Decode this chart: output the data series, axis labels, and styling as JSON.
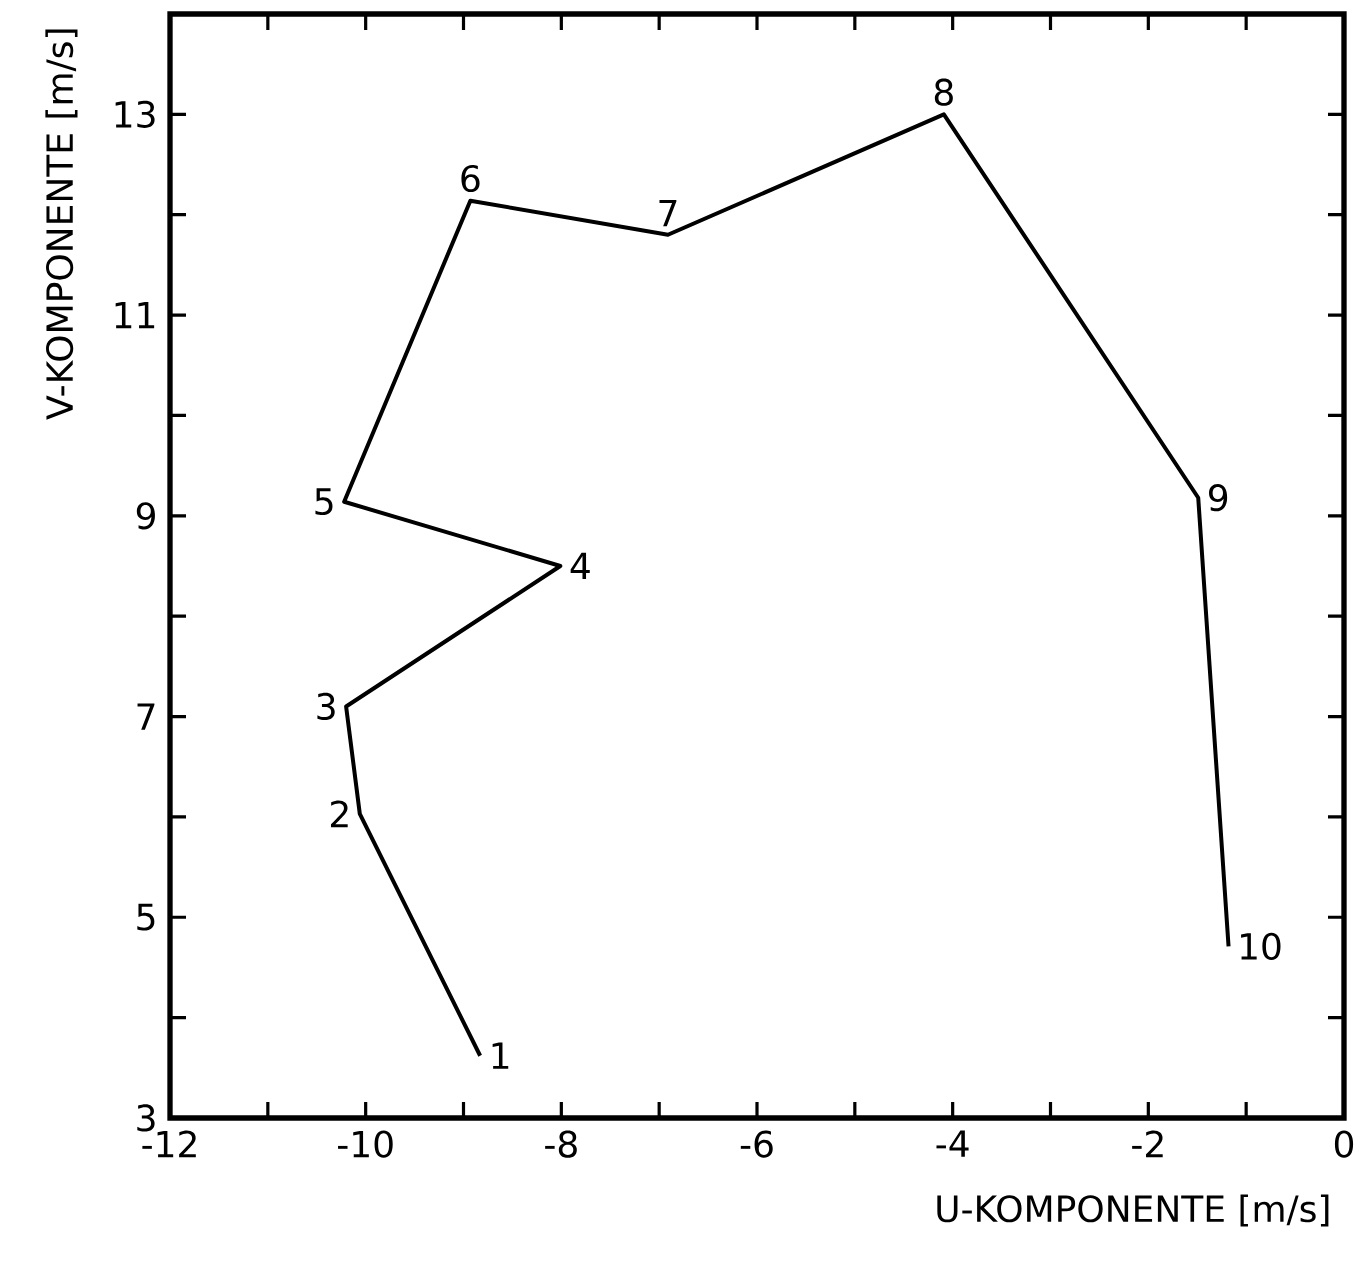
{
  "chart_data": {
    "type": "line",
    "xlabel": "U-KOMPONENTE  [m/s]",
    "ylabel": "V-KOMPONENTE  [m/s]",
    "x": [
      -8.83,
      -10.06,
      -10.2,
      -8.01,
      -10.22,
      -8.93,
      -6.91,
      -4.09,
      -1.49,
      -1.18
    ],
    "series": [
      {
        "color": "#000000",
        "values": [
          3.62,
          6.03,
          7.1,
          8.5,
          9.14,
          12.14,
          11.8,
          13.0,
          9.18,
          4.71
        ]
      }
    ],
    "xlim": [
      -12,
      0
    ],
    "ylim": [
      3,
      14
    ],
    "xticks": [
      -12,
      {
        "value": -11,
        "label": null
      },
      -10,
      {
        "value": -9,
        "label": null
      },
      -8,
      {
        "value": -7,
        "label": null
      },
      -6,
      {
        "value": -5,
        "label": null
      },
      -4,
      {
        "value": -3,
        "label": null
      },
      -2,
      {
        "value": -1,
        "label": null
      },
      0
    ],
    "yticks": [
      3,
      {
        "value": 4,
        "label": null
      },
      5,
      {
        "value": 6,
        "label": null
      },
      7,
      {
        "value": 8,
        "label": null
      },
      9,
      {
        "value": 10,
        "label": null
      },
      11,
      {
        "value": 12,
        "label": null
      },
      13
    ],
    "annotations": [
      {
        "text": "1",
        "x": -8.83,
        "y": 3.62
      },
      {
        "text": "2",
        "x": -10.06,
        "y": 6.03
      },
      {
        "text": "3",
        "x": -10.2,
        "y": 7.1
      },
      {
        "text": "4",
        "x": -8.01,
        "y": 8.5
      },
      {
        "text": "5",
        "x": -10.22,
        "y": 9.14
      },
      {
        "text": "6",
        "x": -8.93,
        "y": 12.14
      },
      {
        "text": "7",
        "x": -6.91,
        "y": 11.8
      },
      {
        "text": "8",
        "x": -4.09,
        "y": 13.0
      },
      {
        "text": "9",
        "x": -1.49,
        "y": 9.18
      },
      {
        "text": "10",
        "x": -1.18,
        "y": 4.71
      }
    ],
    "grid": false,
    "marker": "none",
    "line_style": "solid"
  }
}
